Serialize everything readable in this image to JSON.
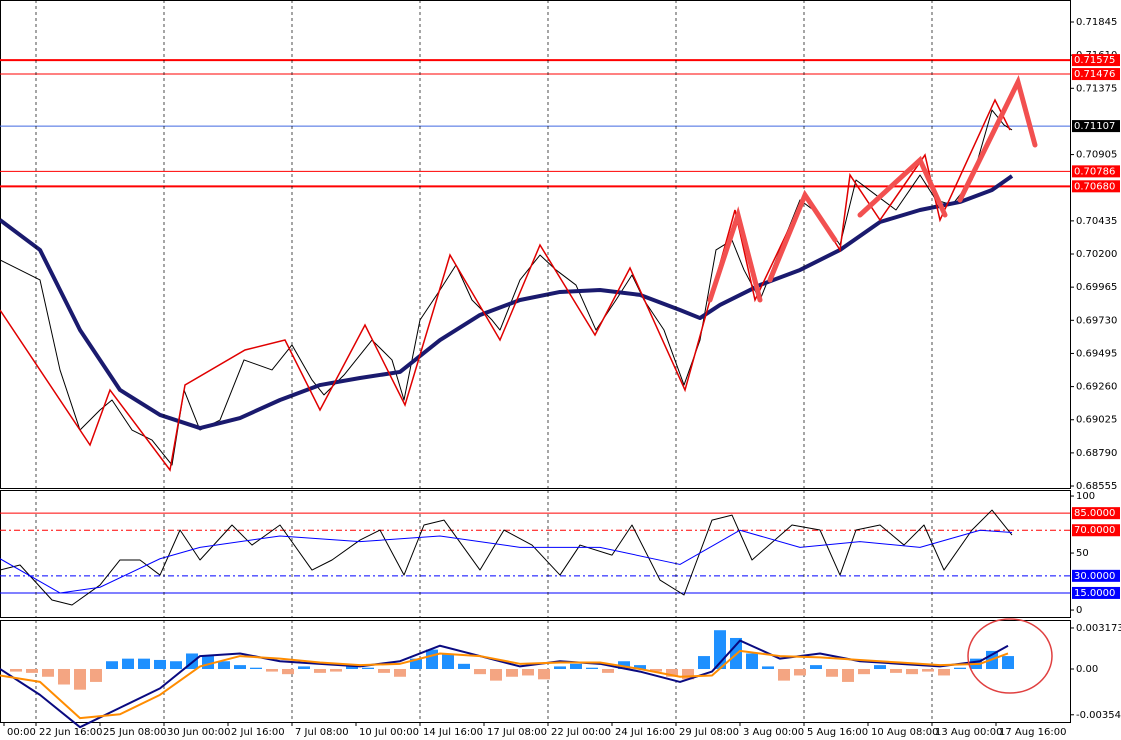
{
  "chart_data": [
    {
      "type": "line",
      "xlim": [
        0,
        267.5
      ],
      "ylim": [
        0.68541,
        0.72001
      ],
      "yticks": [
        0.71845,
        {
          "value": 0.7161,
          "label": "0.71610"
        },
        0.71375,
        0.70905,
        0.70435,
        {
          "value": 0.702,
          "label": "0.70200"
        },
        0.69965,
        {
          "value": 0.6973,
          "label": "0.69730"
        },
        0.69495,
        {
          "value": 0.6926,
          "label": "0.69260"
        },
        0.69025,
        {
          "value": 0.6879,
          "label": "0.68790"
        },
        0.68555
      ],
      "levels": [
        {
          "value": 0.71575,
          "color": "#ff0000",
          "width": 2,
          "box": "#ff0000"
        },
        {
          "value": 0.71476,
          "color": "#ff0000",
          "width": 1,
          "box": "#ff0000"
        },
        {
          "value": 0.71107,
          "color": "#4169e1",
          "width": 1,
          "box": "#000000"
        },
        {
          "value": 0.70786,
          "color": "#ff0000",
          "width": 1,
          "box": "#ff0000"
        },
        {
          "value": 0.7068,
          "label": "0.70680",
          "color": "#ff0000",
          "width": 2,
          "box": "#ff0000"
        }
      ],
      "series": [
        {
          "type": "line",
          "color": "#000000",
          "width": 1,
          "x": [
            0,
            5,
            10,
            15,
            20,
            25,
            28,
            33,
            38,
            43,
            46,
            50,
            55,
            61,
            68,
            73,
            78,
            81,
            86,
            93,
            98,
            101,
            105,
            110,
            114,
            118,
            123,
            125,
            130,
            135,
            139,
            144,
            149,
            154,
            158,
            161,
            166,
            171,
            175,
            179,
            183,
            186,
            190,
            195,
            200,
            205,
            210,
            214,
            219,
            224,
            230,
            234,
            238,
            243,
            248,
            251,
            253
          ],
          "values": [
            0.70158,
            0.70087,
            0.70016,
            0.69378,
            0.68952,
            0.69094,
            0.69165,
            0.68952,
            0.68881,
            0.68704,
            0.69236,
            0.68952,
            0.69023,
            0.69449,
            0.69378,
            0.69555,
            0.69307,
            0.69201,
            0.69342,
            0.6959,
            0.69449,
            0.69165,
            0.69732,
            0.69945,
            0.70122,
            0.69874,
            0.69732,
            0.69661,
            0.70016,
            0.70193,
            0.70087,
            0.6998,
            0.69661,
            0.69874,
            0.70051,
            0.69874,
            0.69661,
            0.69271,
            0.6959,
            0.70229,
            0.70299,
            0.70087,
            0.69874,
            0.70229,
            0.70583,
            0.70477,
            0.70264,
            0.70725,
            0.70618,
            0.70512,
            0.7076,
            0.70583,
            0.70548,
            0.70725,
            0.71221,
            0.71115,
            0.7108
          ]
        },
        {
          "type": "line",
          "color": "#1a1a6e",
          "width": 4,
          "x": [
            0,
            10,
            20,
            30,
            40,
            50,
            60,
            70,
            80,
            90,
            100,
            110,
            120,
            130,
            140,
            150,
            160,
            170,
            175,
            180,
            190,
            200,
            210,
            220,
            230,
            240,
            248,
            253
          ],
          "values": [
            0.70441,
            0.70229,
            0.69661,
            0.69236,
            0.69059,
            0.68966,
            0.69037,
            0.69165,
            0.69271,
            0.69321,
            0.69364,
            0.6959,
            0.69768,
            0.69874,
            0.69931,
            0.69945,
            0.6991,
            0.69803,
            0.69746,
            0.69839,
            0.6998,
            0.70087,
            0.70229,
            0.70427,
            0.70512,
            0.70569,
            0.70654,
            0.70753
          ]
        }
      ]
    },
    {
      "type": "line",
      "xlim": [
        0,
        267.5
      ],
      "ylim": [
        -6.1,
        105.3
      ],
      "yticks": [
        100,
        50,
        0
      ],
      "levels": [
        {
          "value": 85,
          "label": "85.0000",
          "color": "#ff0000",
          "width": 1,
          "box": "#ff0000"
        },
        {
          "value": 70,
          "label": "70.0000",
          "color": "#ff0000",
          "width": 1,
          "dash": "6 3 2 3",
          "box": "#ff0000"
        },
        {
          "value": 30,
          "label": "30.0000",
          "color": "#0000ff",
          "width": 1,
          "dash": "6 3 2 3",
          "box": "#0000ff"
        },
        {
          "value": 15,
          "label": "15.0000",
          "color": "#0000ff",
          "width": 1,
          "box": "#0000ff"
        }
      ],
      "series": [
        {
          "type": "line",
          "color": "#000000",
          "width": 1,
          "x": [
            0,
            5,
            13,
            18,
            25,
            30,
            35,
            40,
            45,
            50,
            58,
            63,
            70,
            78,
            83,
            90,
            95,
            101,
            106,
            111,
            120,
            126,
            133,
            140,
            145,
            153,
            158,
            165,
            171,
            178,
            183,
            188,
            198,
            205,
            210,
            214,
            220,
            226,
            231,
            236,
            243,
            248,
            253
          ],
          "values": [
            35.1,
            39.5,
            8.8,
            4.4,
            21.9,
            43.9,
            43.9,
            30.7,
            70.2,
            43.9,
            74.6,
            57.0,
            74.6,
            35.1,
            43.9,
            61.4,
            70.2,
            30.7,
            74.6,
            78.9,
            35.1,
            70.2,
            57.0,
            30.7,
            57.0,
            48.2,
            74.6,
            26.3,
            13.2,
            78.9,
            83.3,
            43.9,
            74.6,
            70.2,
            30.7,
            70.2,
            74.6,
            57.0,
            74.6,
            35.1,
            70.2,
            87.7,
            65.8
          ]
        },
        {
          "type": "line",
          "color": "#0000ff",
          "width": 1,
          "x": [
            0,
            15,
            25,
            40,
            50,
            70,
            90,
            110,
            130,
            150,
            170,
            185,
            200,
            215,
            230,
            245,
            253
          ],
          "values": [
            45,
            15,
            20,
            45,
            55,
            65,
            60,
            65,
            55,
            55,
            40,
            70,
            55,
            60,
            55,
            70,
            68
          ]
        }
      ]
    },
    {
      "type": "line",
      "xlim": [
        0,
        267.5
      ],
      "ylim": [
        -0.0041,
        0.00379
      ],
      "yticks": [
        0.0031736,
        {
          "value": 0,
          "label": "0.00"
        },
        -0.003541
      ],
      "xticks": [
        {
          "value": 1,
          "label": "00:00"
        },
        {
          "value": 9,
          "label": "22 Jun 16:00"
        },
        {
          "value": 25,
          "label": "25 Jun 08:00"
        },
        {
          "value": 41,
          "label": "30 Jun 00:00"
        },
        {
          "value": 57,
          "label": "2 Jul 16:00"
        },
        {
          "value": 73,
          "label": "7 Jul 08:00"
        },
        {
          "value": 89,
          "label": "10 Jul 00:00"
        },
        {
          "value": 105,
          "label": "14 Jul 16:00"
        },
        {
          "value": 121,
          "label": "17 Jul 08:00"
        },
        {
          "value": 137,
          "label": "22 Jul 00:00"
        },
        {
          "value": 153,
          "label": "24 Jul 16:00"
        },
        {
          "value": 169,
          "label": "29 Jul 08:00"
        },
        {
          "value": 185,
          "label": "3 Aug 00:00"
        },
        {
          "value": 201,
          "label": "5 Aug 16:00"
        },
        {
          "value": 217,
          "label": "10 Aug 08:00"
        },
        {
          "value": 233,
          "label": "13 Aug 00:00"
        },
        {
          "value": 249,
          "label": "17 Aug 16:00"
        }
      ],
      "xgrid": true,
      "series": [
        {
          "type": "bar",
          "color": "#1e90ff",
          "negative_color": "#f4a582",
          "x": [
            0,
            4,
            8,
            12,
            16,
            20,
            24,
            28,
            32,
            36,
            40,
            44,
            48,
            52,
            56,
            60,
            64,
            68,
            72,
            76,
            80,
            84,
            88,
            92,
            96,
            100,
            104,
            108,
            112,
            116,
            120,
            124,
            128,
            132,
            136,
            140,
            144,
            148,
            152,
            156,
            160,
            164,
            168,
            172,
            176,
            180,
            184,
            188,
            192,
            196,
            200,
            204,
            208,
            212,
            216,
            220,
            224,
            228,
            232,
            236,
            240,
            244,
            248,
            252
          ],
          "values": [
            0,
            -0.0002,
            -0.0003,
            -0.0006,
            -0.0012,
            -0.0016,
            -0.001,
            0.0006,
            0.0008,
            0.0008,
            0.0007,
            0.0006,
            0.0012,
            0.001,
            0.0006,
            0.0003,
            0.0001,
            -0.0002,
            -0.0004,
            0.0002,
            -0.0003,
            -0.0002,
            0.0002,
            0.0001,
            -0.0003,
            -0.0006,
            0.0008,
            0.0015,
            0.0012,
            0.0004,
            -0.0004,
            -0.0009,
            -0.0006,
            -0.0005,
            -0.0008,
            0.0002,
            0.0004,
            0.0001,
            -0.0003,
            0.0006,
            0.0003,
            -0.0002,
            -0.0006,
            -0.0008,
            0.001,
            0.003,
            0.0024,
            0.0012,
            0.0002,
            -0.0009,
            -0.0005,
            0.0003,
            -0.0006,
            -0.001,
            -0.0004,
            0.0003,
            -0.0003,
            -0.0004,
            -0.0002,
            -0.0005,
            0.0001,
            0.0008,
            0.0014,
            0.001
          ]
        },
        {
          "type": "line",
          "color": "#0a0a80",
          "width": 2,
          "x": [
            0,
            10,
            20,
            30,
            40,
            50,
            60,
            70,
            80,
            90,
            100,
            110,
            120,
            130,
            140,
            150,
            160,
            170,
            178,
            185,
            195,
            205,
            215,
            225,
            235,
            245,
            252
          ],
          "values": [
            0,
            -0.002,
            -0.0045,
            -0.003,
            -0.0015,
            0.001,
            0.0012,
            0.0006,
            0.0004,
            0.0002,
            0.0006,
            0.0018,
            0.001,
            0.0002,
            0.0006,
            0.0004,
            -0.0002,
            -0.001,
            -0.0002,
            0.0022,
            0.0008,
            0.0012,
            0.0006,
            0.0004,
            0.0002,
            0.0006,
            0.0018
          ]
        },
        {
          "type": "line",
          "color": "#ff8c00",
          "width": 2,
          "x": [
            0,
            10,
            20,
            30,
            40,
            50,
            60,
            70,
            80,
            90,
            100,
            110,
            120,
            130,
            140,
            150,
            160,
            170,
            178,
            185,
            195,
            205,
            215,
            225,
            235,
            245,
            252
          ],
          "values": [
            -0.0005,
            -0.001,
            -0.0038,
            -0.0035,
            -0.002,
            0.0002,
            0.001,
            0.0008,
            0.0005,
            0.0003,
            0.0004,
            0.0012,
            0.001,
            0.0004,
            0.0005,
            0.0005,
            0,
            -0.0006,
            -0.0005,
            0.0014,
            0.001,
            0.0009,
            0.0007,
            0.0005,
            0.0003,
            0.0004,
            0.0012
          ]
        }
      ]
    }
  ]
}
